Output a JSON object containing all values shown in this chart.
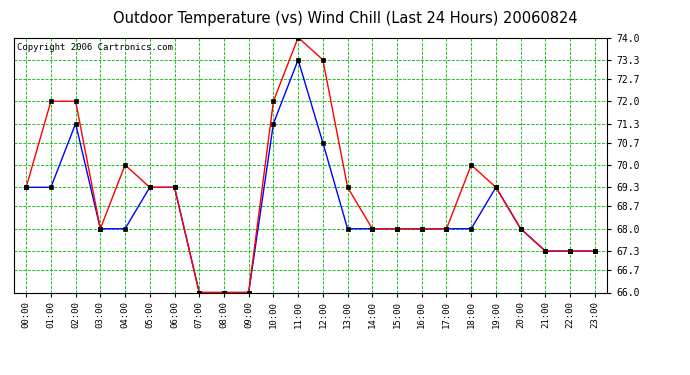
{
  "title": "Outdoor Temperature (vs) Wind Chill (Last 24 Hours) 20060824",
  "copyright": "Copyright 2006 Cartronics.com",
  "hours": [
    "00:00",
    "01:00",
    "02:00",
    "03:00",
    "04:00",
    "05:00",
    "06:00",
    "07:00",
    "08:00",
    "09:00",
    "10:00",
    "11:00",
    "12:00",
    "13:00",
    "14:00",
    "15:00",
    "16:00",
    "17:00",
    "18:00",
    "19:00",
    "20:00",
    "21:00",
    "22:00",
    "23:00"
  ],
  "temp": [
    69.3,
    72.0,
    72.0,
    68.0,
    70.0,
    69.3,
    69.3,
    66.0,
    66.0,
    66.0,
    72.0,
    74.0,
    73.3,
    69.3,
    68.0,
    68.0,
    68.0,
    68.0,
    70.0,
    69.3,
    68.0,
    67.3,
    67.3,
    67.3
  ],
  "wind_chill": [
    69.3,
    69.3,
    71.3,
    68.0,
    68.0,
    69.3,
    69.3,
    66.0,
    66.0,
    66.0,
    71.3,
    73.3,
    70.7,
    68.0,
    68.0,
    68.0,
    68.0,
    68.0,
    68.0,
    69.3,
    68.0,
    67.3,
    67.3,
    67.3
  ],
  "temp_color": "#ff0000",
  "wind_chill_color": "#0000ff",
  "bg_color": "#ffffff",
  "plot_bg_color": "#ffffff",
  "grid_color": "#00bb00",
  "ylim": [
    66.0,
    74.0
  ],
  "yticks": [
    66.0,
    66.7,
    67.3,
    68.0,
    68.7,
    69.3,
    70.0,
    70.7,
    71.3,
    72.0,
    72.7,
    73.3,
    74.0
  ],
  "title_fontsize": 10.5,
  "copyright_fontsize": 6.5
}
